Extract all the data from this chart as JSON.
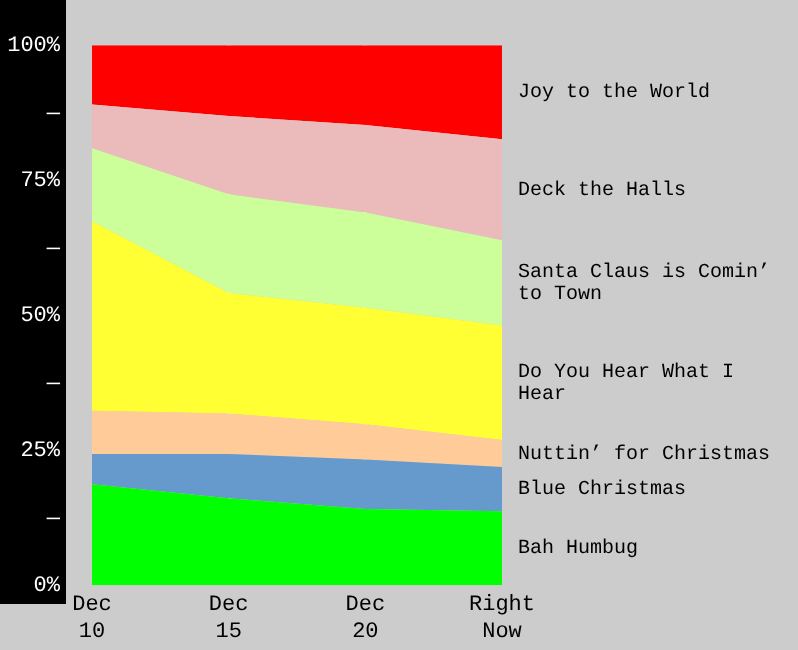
{
  "chart_data": {
    "type": "area",
    "stacked": true,
    "grid": "x",
    "legend": false,
    "categories": [
      "Dec 10",
      "Dec 15",
      "Dec 20",
      "Right Now"
    ],
    "ylim": [
      0,
      100
    ],
    "yticks": [
      {
        "value": 0,
        "label": "0%"
      },
      {
        "value": 12.5,
        "label": "—"
      },
      {
        "value": 25,
        "label": "25%"
      },
      {
        "value": 37.5,
        "label": "—"
      },
      {
        "value": 50,
        "label": "50%"
      },
      {
        "value": 62.5,
        "label": "—"
      },
      {
        "value": 75,
        "label": "75%"
      },
      {
        "value": 87.5,
        "label": "—"
      },
      {
        "value": 100,
        "label": "100%"
      }
    ],
    "series": [
      {
        "name": "Bah Humbug",
        "color": "#00ff00",
        "values": [
          18.7,
          16.1,
          14.1,
          13.7
        ]
      },
      {
        "name": "Blue Christmas",
        "color": "#6699cc",
        "values": [
          5.6,
          8.2,
          9.2,
          8.2
        ]
      },
      {
        "name": "Nuttin’ for Christmas",
        "color": "#ffcc99",
        "values": [
          8.0,
          7.5,
          6.5,
          5.0
        ]
      },
      {
        "name": "Do You Hear What I Hear",
        "color": "#ffff33",
        "values": [
          35.1,
          22.3,
          21.6,
          21.2
        ]
      },
      {
        "name": "Santa Claus is Comin’ to Town",
        "color": "#ccff99",
        "values": [
          13.5,
          18.3,
          17.6,
          15.8
        ]
      },
      {
        "name": "Deck the Halls",
        "color": "#ebbbbb",
        "values": [
          8.1,
          14.5,
          16.2,
          18.7
        ]
      },
      {
        "name": "Joy to the World",
        "color": "#ff0000",
        "values": [
          11.0,
          13.1,
          14.8,
          17.4
        ]
      }
    ]
  }
}
